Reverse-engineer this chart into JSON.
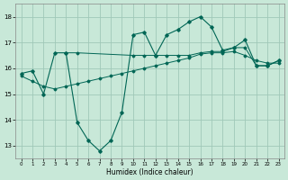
{
  "xlabel": "Humidex (Indice chaleur)",
  "xlim": [
    -0.5,
    23.5
  ],
  "ylim": [
    12.5,
    18.5
  ],
  "yticks": [
    13,
    14,
    15,
    16,
    17,
    18
  ],
  "xticks": [
    0,
    1,
    2,
    3,
    4,
    5,
    6,
    7,
    8,
    9,
    10,
    11,
    12,
    13,
    14,
    15,
    16,
    17,
    18,
    19,
    20,
    21,
    22,
    23
  ],
  "bg_color": "#c8e8d8",
  "grid_color": "#a0c8b8",
  "line_color": "#006655",
  "series1_x": [
    0,
    1,
    2,
    3,
    4,
    5,
    6,
    7,
    8,
    9,
    10,
    11,
    12,
    13,
    14,
    15,
    16,
    17,
    18,
    19,
    20,
    21,
    22,
    23
  ],
  "series1_y": [
    15.8,
    15.9,
    15.0,
    16.6,
    16.6,
    13.9,
    13.2,
    12.8,
    13.2,
    14.3,
    17.3,
    17.4,
    16.5,
    17.3,
    17.5,
    17.8,
    18.0,
    17.6,
    16.7,
    16.8,
    17.1,
    16.1,
    16.1,
    16.3
  ],
  "series2_x": [
    0,
    1,
    2,
    3,
    4,
    5,
    6,
    7,
    8,
    9,
    10,
    11,
    12,
    13,
    14,
    15,
    16,
    17,
    18,
    19,
    20,
    21,
    22,
    23
  ],
  "series2_y": [
    15.7,
    15.5,
    15.3,
    15.2,
    15.3,
    15.4,
    15.5,
    15.6,
    15.7,
    15.8,
    15.9,
    16.0,
    16.1,
    16.2,
    16.3,
    16.4,
    16.55,
    16.6,
    16.6,
    16.65,
    16.5,
    16.3,
    16.2,
    16.2
  ],
  "series3_x": [
    4,
    5,
    10,
    11,
    12,
    13,
    14,
    15,
    16,
    17,
    18,
    19,
    20,
    21,
    22,
    23
  ],
  "series3_y": [
    16.6,
    16.6,
    16.5,
    16.5,
    16.5,
    16.5,
    16.5,
    16.5,
    16.6,
    16.65,
    16.65,
    16.8,
    16.8,
    16.1,
    16.1,
    16.3
  ]
}
